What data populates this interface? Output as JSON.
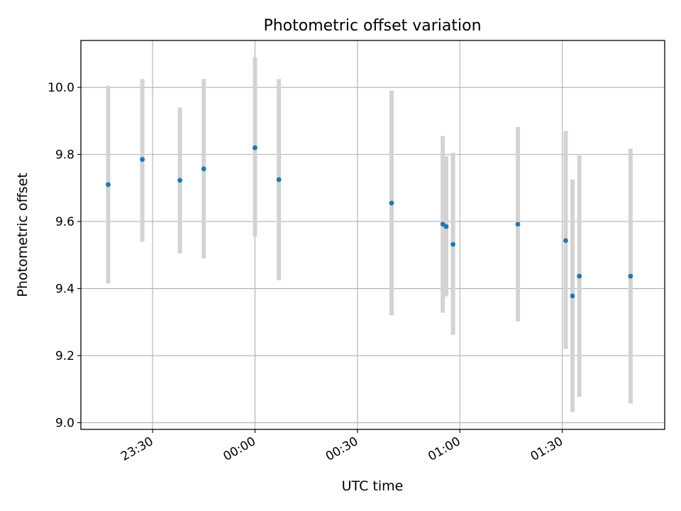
{
  "chart_data": {
    "type": "scatter",
    "title": "Photometric offset variation",
    "xlabel": "UTC time",
    "ylabel": "Photometric offset",
    "x_is_time": true,
    "x_start_day": "day1",
    "xlim": [
      "23:09",
      "02:00"
    ],
    "ylim": [
      8.98,
      10.14
    ],
    "xticks": [
      "23:30",
      "00:00",
      "00:30",
      "01:00",
      "01:30"
    ],
    "yticks": [
      "9.0",
      "9.2",
      "9.4",
      "9.6",
      "9.8",
      "10.0"
    ],
    "grid": true,
    "marker_color": "#1f77b4",
    "errorbar_color": "#d3d3d3",
    "points": [
      {
        "x": "23:17",
        "y": 9.71,
        "lo": 9.415,
        "hi": 10.005
      },
      {
        "x": "23:27",
        "y": 9.785,
        "lo": 9.54,
        "hi": 10.025
      },
      {
        "x": "23:38",
        "y": 9.723,
        "lo": 9.505,
        "hi": 9.94
      },
      {
        "x": "23:45",
        "y": 9.757,
        "lo": 9.49,
        "hi": 10.025
      },
      {
        "x": "24:00",
        "y": 9.82,
        "lo": 9.555,
        "hi": 10.09
      },
      {
        "x": "24:07",
        "y": 9.725,
        "lo": 9.425,
        "hi": 10.025
      },
      {
        "x": "24:40",
        "y": 9.655,
        "lo": 9.32,
        "hi": 9.99
      },
      {
        "x": "24:55",
        "y": 9.592,
        "lo": 9.328,
        "hi": 9.855
      },
      {
        "x": "24:56",
        "y": 9.585,
        "lo": 9.377,
        "hi": 9.795
      },
      {
        "x": "24:58",
        "y": 9.532,
        "lo": 9.262,
        "hi": 9.805
      },
      {
        "x": "25:17",
        "y": 9.592,
        "lo": 9.302,
        "hi": 9.882
      },
      {
        "x": "25:31",
        "y": 9.543,
        "lo": 9.22,
        "hi": 9.87
      },
      {
        "x": "25:33",
        "y": 9.378,
        "lo": 9.032,
        "hi": 9.725
      },
      {
        "x": "25:35",
        "y": 9.437,
        "lo": 9.077,
        "hi": 9.797
      },
      {
        "x": "25:50",
        "y": 9.437,
        "lo": 9.057,
        "hi": 9.817
      }
    ]
  }
}
